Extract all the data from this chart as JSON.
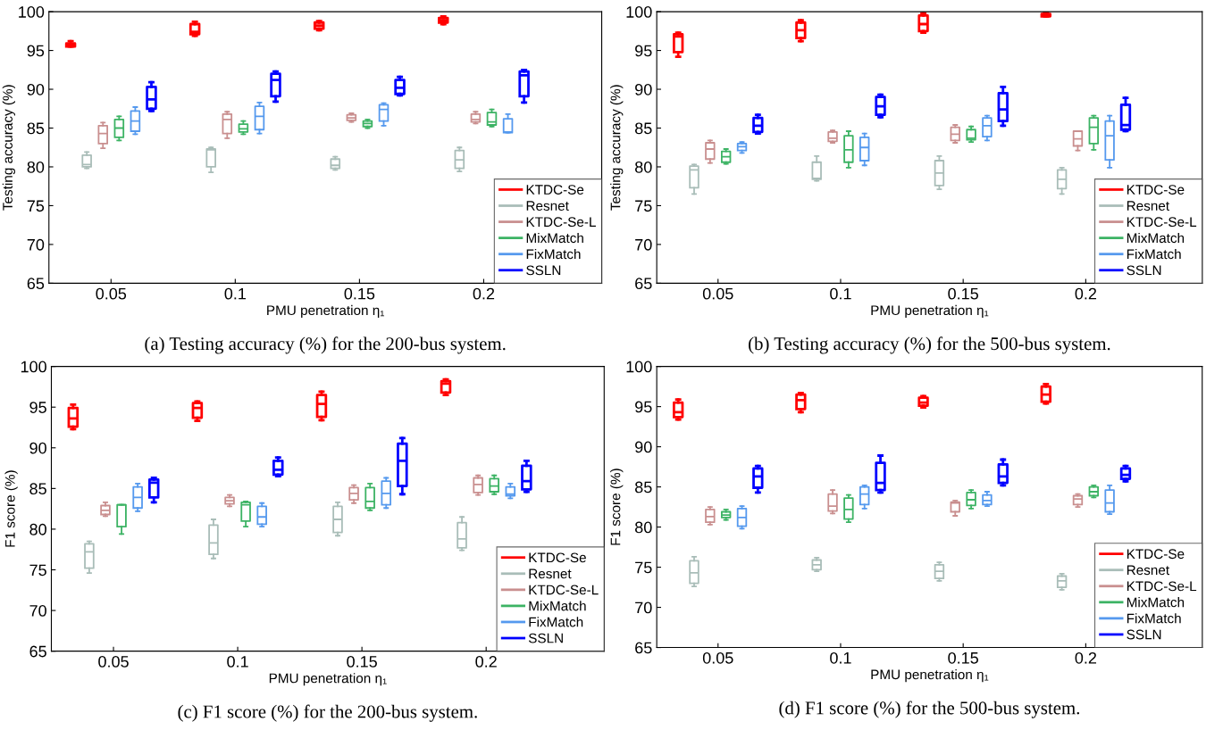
{
  "chart_data": [
    {
      "type": "box",
      "categories": [
        "0.05",
        "0.1",
        "0.15",
        "0.2"
      ],
      "xlabel": "PMU penetration η₁",
      "ylabel": "Testing accuracy (%)",
      "ylim": [
        65,
        100
      ],
      "yticks": [
        65,
        70,
        75,
        80,
        85,
        90,
        95,
        100
      ],
      "legend": "bottom right",
      "annotations": [
        "(a) Testing accuracy (%) for the 200-bus system."
      ],
      "series": [
        {
          "name": "KTDC-Se",
          "color": "#ff0000",
          "boxes": [
            {
              "low": 95.5,
              "q1": 95.5,
              "median": 95.7,
              "q3": 95.9,
              "high": 96.2
            },
            {
              "low": 96.9,
              "q1": 97.1,
              "median": 97.4,
              "q3": 98.4,
              "high": 98.7
            },
            {
              "low": 97.6,
              "q1": 97.8,
              "median": 98.2,
              "q3": 98.6,
              "high": 98.8
            },
            {
              "low": 98.4,
              "q1": 98.6,
              "median": 98.9,
              "q3": 99.2,
              "high": 99.4
            }
          ]
        },
        {
          "name": "Resnet",
          "color": "#a9bdb8",
          "boxes": [
            {
              "low": 79.8,
              "q1": 80.0,
              "median": 80.3,
              "q3": 81.5,
              "high": 81.9
            },
            {
              "low": 79.3,
              "q1": 80.0,
              "median": 82.2,
              "q3": 82.3,
              "high": 82.5
            },
            {
              "low": 79.6,
              "q1": 79.8,
              "median": 80.2,
              "q3": 81.0,
              "high": 81.3
            },
            {
              "low": 79.4,
              "q1": 79.8,
              "median": 80.9,
              "q3": 82.1,
              "high": 82.5
            }
          ]
        },
        {
          "name": "KTDC-Se-L",
          "color": "#c98f8f",
          "boxes": [
            {
              "low": 82.4,
              "q1": 83.0,
              "median": 84.3,
              "q3": 85.3,
              "high": 85.7
            },
            {
              "low": 83.7,
              "q1": 84.3,
              "median": 86.1,
              "q3": 86.8,
              "high": 87.1
            },
            {
              "low": 85.8,
              "q1": 86.0,
              "median": 86.3,
              "q3": 86.7,
              "high": 86.9
            },
            {
              "low": 85.6,
              "q1": 85.8,
              "median": 86.1,
              "q3": 86.8,
              "high": 87.1
            }
          ]
        },
        {
          "name": "MixMatch",
          "color": "#3cb364",
          "boxes": [
            {
              "low": 83.4,
              "q1": 83.8,
              "median": 85.0,
              "q3": 86.1,
              "high": 86.5
            },
            {
              "low": 84.2,
              "q1": 84.5,
              "median": 84.9,
              "q3": 85.5,
              "high": 85.9
            },
            {
              "low": 85.0,
              "q1": 85.2,
              "median": 85.6,
              "q3": 85.9,
              "high": 86.1
            },
            {
              "low": 85.2,
              "q1": 85.4,
              "median": 85.8,
              "q3": 87.0,
              "high": 87.4
            }
          ]
        },
        {
          "name": "FixMatch",
          "color": "#5599ee",
          "boxes": [
            {
              "low": 84.2,
              "q1": 84.6,
              "median": 85.9,
              "q3": 87.2,
              "high": 87.7
            },
            {
              "low": 84.3,
              "q1": 84.8,
              "median": 86.5,
              "q3": 87.8,
              "high": 88.3
            },
            {
              "low": 85.3,
              "q1": 85.9,
              "median": 87.4,
              "q3": 88.0,
              "high": 88.2
            },
            {
              "low": 84.4,
              "q1": 84.4,
              "median": 84.5,
              "q3": 86.2,
              "high": 86.8
            }
          ]
        },
        {
          "name": "SSLN",
          "color": "#0000ff",
          "boxes": [
            {
              "low": 87.2,
              "q1": 87.5,
              "median": 88.7,
              "q3": 90.3,
              "high": 90.9
            },
            {
              "low": 88.4,
              "q1": 89.1,
              "median": 91.2,
              "q3": 92.0,
              "high": 92.3
            },
            {
              "low": 89.2,
              "q1": 89.4,
              "median": 90.2,
              "q3": 91.2,
              "high": 91.6
            },
            {
              "low": 88.3,
              "q1": 89.1,
              "median": 91.8,
              "q3": 92.3,
              "high": 92.5
            }
          ]
        }
      ]
    },
    {
      "type": "box",
      "categories": [
        "0.05",
        "0.1",
        "0.15",
        "0.2"
      ],
      "xlabel": "PMU penetration η₁",
      "ylabel": "Testing accuracy (%)",
      "ylim": [
        65,
        100
      ],
      "yticks": [
        65,
        70,
        75,
        80,
        85,
        90,
        95,
        100
      ],
      "legend": "bottom right",
      "annotations": [
        "(b) Testing accuracy (%) for the 500-bus system."
      ],
      "series": [
        {
          "name": "KTDC-Se",
          "color": "#ff0000",
          "boxes": [
            {
              "low": 94.2,
              "q1": 94.8,
              "median": 96.8,
              "q3": 97.1,
              "high": 97.3
            },
            {
              "low": 96.2,
              "q1": 96.6,
              "median": 97.6,
              "q3": 98.6,
              "high": 98.9
            },
            {
              "low": 97.3,
              "q1": 97.5,
              "median": 98.4,
              "q3": 99.5,
              "high": 99.8
            },
            {
              "low": 99.4,
              "q1": 99.4,
              "median": 99.5,
              "q3": 99.7,
              "high": 99.9
            }
          ]
        },
        {
          "name": "Resnet",
          "color": "#a9bdb8",
          "boxes": [
            {
              "low": 76.5,
              "q1": 77.3,
              "median": 79.6,
              "q3": 80.1,
              "high": 80.3
            },
            {
              "low": 78.2,
              "q1": 78.4,
              "median": 78.5,
              "q3": 80.6,
              "high": 81.4
            },
            {
              "low": 77.1,
              "q1": 77.6,
              "median": 79.2,
              "q3": 80.8,
              "high": 81.4
            },
            {
              "low": 76.5,
              "q1": 77.2,
              "median": 78.4,
              "q3": 79.6,
              "high": 79.9
            }
          ]
        },
        {
          "name": "KTDC-Se-L",
          "color": "#c98f8f",
          "boxes": [
            {
              "low": 80.5,
              "q1": 81.0,
              "median": 82.3,
              "q3": 83.1,
              "high": 83.4
            },
            {
              "low": 83.1,
              "q1": 83.3,
              "median": 83.7,
              "q3": 84.5,
              "high": 84.7
            },
            {
              "low": 83.1,
              "q1": 83.4,
              "median": 84.2,
              "q3": 85.1,
              "high": 85.4
            },
            {
              "low": 82.1,
              "q1": 82.7,
              "median": 83.6,
              "q3": 84.6,
              "high": 84.6
            }
          ]
        },
        {
          "name": "MixMatch",
          "color": "#3cb364",
          "boxes": [
            {
              "low": 80.4,
              "q1": 80.6,
              "median": 81.3,
              "q3": 82.0,
              "high": 82.3
            },
            {
              "low": 79.9,
              "q1": 80.6,
              "median": 82.2,
              "q3": 84.0,
              "high": 84.6
            },
            {
              "low": 83.2,
              "q1": 83.5,
              "median": 83.7,
              "q3": 84.8,
              "high": 85.2
            },
            {
              "low": 82.2,
              "q1": 83.0,
              "median": 85.1,
              "q3": 86.3,
              "high": 86.6
            }
          ]
        },
        {
          "name": "FixMatch",
          "color": "#5599ee",
          "boxes": [
            {
              "low": 81.8,
              "q1": 82.1,
              "median": 82.6,
              "q3": 83.0,
              "high": 83.2
            },
            {
              "low": 80.2,
              "q1": 80.8,
              "median": 82.5,
              "q3": 83.8,
              "high": 84.3
            },
            {
              "low": 83.4,
              "q1": 83.9,
              "median": 85.3,
              "q3": 86.3,
              "high": 86.6
            },
            {
              "low": 79.9,
              "q1": 80.9,
              "median": 84.0,
              "q3": 85.9,
              "high": 86.6
            }
          ]
        },
        {
          "name": "SSLN",
          "color": "#0000ff",
          "boxes": [
            {
              "low": 84.3,
              "q1": 84.5,
              "median": 85.3,
              "q3": 86.3,
              "high": 86.7
            },
            {
              "low": 86.4,
              "q1": 86.7,
              "median": 87.8,
              "q3": 89.0,
              "high": 89.3
            },
            {
              "low": 85.3,
              "q1": 85.9,
              "median": 87.4,
              "q3": 89.5,
              "high": 90.3
            },
            {
              "low": 84.6,
              "q1": 84.8,
              "median": 85.4,
              "q3": 88.0,
              "high": 88.9
            }
          ]
        }
      ]
    },
    {
      "type": "box",
      "categories": [
        "0.05",
        "0.1",
        "0.15",
        "0.2"
      ],
      "xlabel": "PMU penetration η₁",
      "ylabel": "F1 score (%)",
      "ylim": [
        65,
        100
      ],
      "yticks": [
        65,
        70,
        75,
        80,
        85,
        90,
        95,
        100
      ],
      "legend": "bottom right",
      "annotations": [
        "(c) F1 score (%) for the 200-bus system."
      ],
      "series": [
        {
          "name": "KTDC-Se",
          "color": "#ff0000",
          "boxes": [
            {
              "low": 92.3,
              "q1": 92.6,
              "median": 93.6,
              "q3": 94.9,
              "high": 95.3
            },
            {
              "low": 93.3,
              "q1": 93.7,
              "median": 94.9,
              "q3": 95.5,
              "high": 95.7
            },
            {
              "low": 93.4,
              "q1": 93.8,
              "median": 95.4,
              "q3": 96.5,
              "high": 96.9
            },
            {
              "low": 96.5,
              "q1": 96.8,
              "median": 97.9,
              "q3": 98.2,
              "high": 98.4
            }
          ]
        },
        {
          "name": "Resnet",
          "color": "#a9bdb8",
          "boxes": [
            {
              "low": 74.6,
              "q1": 75.2,
              "median": 77.2,
              "q3": 78.2,
              "high": 78.5
            },
            {
              "low": 76.4,
              "q1": 76.9,
              "median": 78.3,
              "q3": 80.5,
              "high": 81.2
            },
            {
              "low": 79.2,
              "q1": 79.6,
              "median": 81.2,
              "q3": 82.8,
              "high": 83.3
            },
            {
              "low": 77.4,
              "q1": 77.7,
              "median": 78.8,
              "q3": 80.8,
              "high": 81.5
            }
          ]
        },
        {
          "name": "KTDC-Se-L",
          "color": "#c98f8f",
          "boxes": [
            {
              "low": 81.6,
              "q1": 81.8,
              "median": 82.3,
              "q3": 82.9,
              "high": 83.3
            },
            {
              "low": 82.8,
              "q1": 83.1,
              "median": 83.5,
              "q3": 83.9,
              "high": 84.2
            },
            {
              "low": 83.2,
              "q1": 83.6,
              "median": 84.4,
              "q3": 85.1,
              "high": 85.4
            },
            {
              "low": 84.2,
              "q1": 84.5,
              "median": 85.5,
              "q3": 86.3,
              "high": 86.6
            }
          ]
        },
        {
          "name": "MixMatch",
          "color": "#3cb364",
          "boxes": [
            {
              "low": 79.4,
              "q1": 80.3,
              "median": 83.0,
              "q3": 83.0,
              "high": 83.0
            },
            {
              "low": 80.3,
              "q1": 81.0,
              "median": 83.0,
              "q3": 83.3,
              "high": 83.4
            },
            {
              "low": 82.3,
              "q1": 82.6,
              "median": 83.4,
              "q3": 85.1,
              "high": 85.6
            },
            {
              "low": 84.3,
              "q1": 84.6,
              "median": 85.3,
              "q3": 86.2,
              "high": 86.6
            }
          ]
        },
        {
          "name": "FixMatch",
          "color": "#5599ee",
          "boxes": [
            {
              "low": 82.2,
              "q1": 82.6,
              "median": 83.9,
              "q3": 85.2,
              "high": 85.6
            },
            {
              "low": 80.3,
              "q1": 80.6,
              "median": 81.5,
              "q3": 82.8,
              "high": 83.2
            },
            {
              "low": 82.6,
              "q1": 83.0,
              "median": 84.4,
              "q3": 85.9,
              "high": 86.3
            },
            {
              "low": 83.8,
              "q1": 84.1,
              "median": 84.3,
              "q3": 85.2,
              "high": 85.6
            }
          ]
        },
        {
          "name": "SSLN",
          "color": "#0000ff",
          "boxes": [
            {
              "low": 83.3,
              "q1": 83.9,
              "median": 85.7,
              "q3": 86.1,
              "high": 86.3
            },
            {
              "low": 86.5,
              "q1": 86.7,
              "median": 87.3,
              "q3": 88.4,
              "high": 88.8
            },
            {
              "low": 84.3,
              "q1": 85.3,
              "median": 88.4,
              "q3": 90.5,
              "high": 91.2
            },
            {
              "low": 84.6,
              "q1": 84.9,
              "median": 85.9,
              "q3": 87.8,
              "high": 88.4
            }
          ]
        }
      ]
    },
    {
      "type": "box",
      "categories": [
        "0.05",
        "0.1",
        "0.15",
        "0.2"
      ],
      "xlabel": "PMU penetration η₁",
      "ylabel": "F1 score (%)",
      "ylim": [
        65,
        100
      ],
      "yticks": [
        65,
        70,
        75,
        80,
        85,
        90,
        95,
        100
      ],
      "legend": "bottom right",
      "annotations": [
        "(d) F1 score (%) for the 500-bus system."
      ],
      "series": [
        {
          "name": "KTDC-Se",
          "color": "#ff0000",
          "boxes": [
            {
              "low": 93.4,
              "q1": 93.7,
              "median": 94.3,
              "q3": 95.5,
              "high": 95.9
            },
            {
              "low": 94.3,
              "q1": 94.7,
              "median": 95.8,
              "q3": 96.5,
              "high": 96.7
            },
            {
              "low": 94.9,
              "q1": 95.1,
              "median": 95.5,
              "q3": 96.1,
              "high": 96.3
            },
            {
              "low": 95.4,
              "q1": 95.6,
              "median": 96.5,
              "q3": 97.5,
              "high": 97.8
            }
          ]
        },
        {
          "name": "Resnet",
          "color": "#a9bdb8",
          "boxes": [
            {
              "low": 72.6,
              "q1": 73.0,
              "median": 74.3,
              "q3": 75.8,
              "high": 76.3
            },
            {
              "low": 74.5,
              "q1": 74.7,
              "median": 75.3,
              "q3": 75.9,
              "high": 76.2
            },
            {
              "low": 73.3,
              "q1": 73.6,
              "median": 74.5,
              "q3": 75.3,
              "high": 75.6
            },
            {
              "low": 72.2,
              "q1": 72.5,
              "median": 73.3,
              "q3": 73.9,
              "high": 74.2
            }
          ]
        },
        {
          "name": "KTDC-Se-L",
          "color": "#c98f8f",
          "boxes": [
            {
              "low": 80.3,
              "q1": 80.6,
              "median": 81.3,
              "q3": 82.2,
              "high": 82.5
            },
            {
              "low": 81.7,
              "q1": 82.0,
              "median": 82.6,
              "q3": 84.1,
              "high": 84.6
            },
            {
              "low": 81.4,
              "q1": 81.9,
              "median": 83.0,
              "q3": 83.1,
              "high": 83.3
            },
            {
              "low": 82.5,
              "q1": 82.8,
              "median": 83.5,
              "q3": 83.9,
              "high": 84.1
            }
          ]
        },
        {
          "name": "MixMatch",
          "color": "#3cb364",
          "boxes": [
            {
              "low": 80.9,
              "q1": 81.2,
              "median": 81.5,
              "q3": 81.9,
              "high": 82.2
            },
            {
              "low": 80.6,
              "q1": 81.0,
              "median": 82.2,
              "q3": 83.6,
              "high": 84.0
            },
            {
              "low": 82.3,
              "q1": 82.7,
              "median": 83.4,
              "q3": 84.3,
              "high": 84.6
            },
            {
              "low": 83.7,
              "q1": 83.9,
              "median": 84.4,
              "q3": 85.0,
              "high": 85.2
            }
          ]
        },
        {
          "name": "FixMatch",
          "color": "#5599ee",
          "boxes": [
            {
              "low": 79.8,
              "q1": 80.1,
              "median": 81.2,
              "q3": 82.3,
              "high": 82.6
            },
            {
              "low": 82.3,
              "q1": 82.8,
              "median": 84.1,
              "q3": 85.0,
              "high": 85.2
            },
            {
              "low": 82.6,
              "q1": 82.8,
              "median": 83.3,
              "q3": 84.0,
              "high": 84.4
            },
            {
              "low": 81.6,
              "q1": 81.9,
              "median": 83.0,
              "q3": 84.6,
              "high": 85.2
            }
          ]
        },
        {
          "name": "SSLN",
          "color": "#0000ff",
          "boxes": [
            {
              "low": 84.3,
              "q1": 84.9,
              "median": 86.3,
              "q3": 87.3,
              "high": 87.6
            },
            {
              "low": 84.3,
              "q1": 84.6,
              "median": 85.5,
              "q3": 88.0,
              "high": 88.9
            },
            {
              "low": 85.2,
              "q1": 85.5,
              "median": 86.3,
              "q3": 87.8,
              "high": 88.4
            },
            {
              "low": 85.7,
              "q1": 86.0,
              "median": 86.5,
              "q3": 87.3,
              "high": 87.6
            }
          ]
        }
      ]
    }
  ]
}
